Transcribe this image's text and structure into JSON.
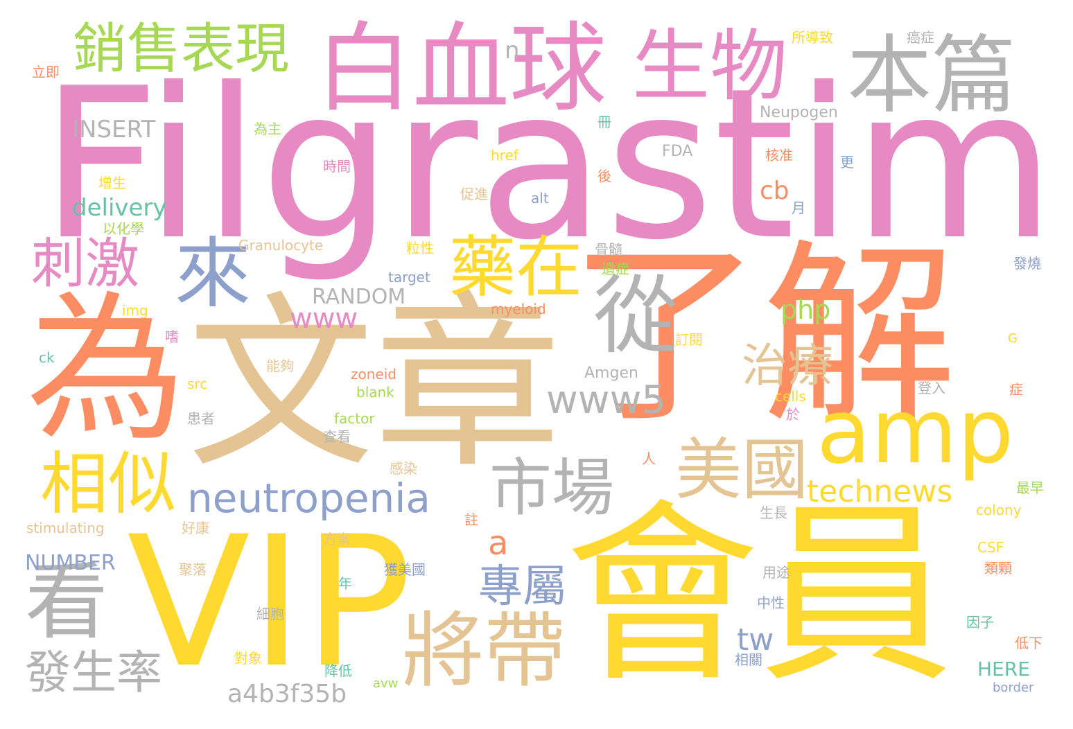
{
  "palette": {
    "pink": "#e78ac3",
    "orange": "#fc8d62",
    "tan": "#e5c494",
    "yellow": "#ffd92f",
    "grey": "#b3b3b3",
    "blue": "#8da0cb",
    "green": "#a6d854",
    "teal": "#66c2a5"
  },
  "words": {
    "filgrastim": "Filgrastim",
    "vip": "VIP",
    "huiyuan": "會員",
    "wenzhang": "文章",
    "liaojie": "了解",
    "wei": "為",
    "baixueqiu": "白血球",
    "shengwu": "生物",
    "benpian": "本篇",
    "xiaoshou": "銷售表現",
    "lai": "來",
    "cong": "從",
    "amp": "amp",
    "yaozai": "藥在",
    "ciji": "刺激",
    "xiangsi": "相似",
    "kan": "看",
    "jiangdai": "將帶",
    "shichang": "市場",
    "meiguo": "美國",
    "neutropenia": "neutropenia",
    "technews": "technews",
    "www5": "www5",
    "zhiliao": "治療",
    "zhuanshu": "專屬",
    "fashenglv": "發生率",
    "www": "www",
    "insert": "INSERT",
    "delivery": "delivery",
    "random": "RANDOM",
    "php": "php",
    "cb": "cb",
    "a": "a",
    "tw": "tw",
    "a4b3f35b": "a4b3f35b",
    "number": "NUMBER",
    "n": "n",
    "here": "HERE",
    "neupogen": "Neupogen",
    "fda": "FDA",
    "amgen": "Amgen",
    "granulocyte": "Granulocyte",
    "stimulating": "stimulating",
    "myeloid": "myeloid",
    "target": "target",
    "href": "href",
    "alt": "alt",
    "zoneid": "zoneid",
    "blank": "blank",
    "factor": "factor",
    "cells": "cells",
    "colony": "colony",
    "csf": "CSF",
    "border": "border",
    "img": "img",
    "ck": "ck",
    "src": "src",
    "avw": "avw",
    "g": "G",
    "lijí": "立即",
    "suodaozhi": "所導致",
    "aizheng": "癌症",
    "weizhu": "為主",
    "ce": "冊",
    "zengsheng": "增生",
    "shijian": "時間",
    "hezhun": "核准",
    "geng": "更",
    "hou": "後",
    "cujin": "促進",
    "yihuaxue": "以化學",
    "yue": "月",
    "lixing": "粒性",
    "gusui": "骨髓",
    "yizheng": "遺症",
    "fashao": "發燒",
    "shi": "嗜",
    "dingyue": "訂閱",
    "nenggou": "能夠",
    "denglu": "登入",
    "zheng": "症",
    "huanzhe": "患者",
    "yu": "於",
    "chakan": "查看",
    "ren": "人",
    "ganran": "感染",
    "zhu": "註",
    "zuizao": "最早",
    "shengzhang": "生長",
    "haokang": "好康",
    "fangan": "方案",
    "juluo": "聚落",
    "huomeiguo": "獲美國",
    "yongtu": "用途",
    "leike": "類顆",
    "nian": "年",
    "zhongxing": "中性",
    "xibao": "細胞",
    "yinzi": "因子",
    "duixiang": "對象",
    "jiangdi": "降低",
    "xiangguan": "相關",
    "dixia": "低下"
  }
}
